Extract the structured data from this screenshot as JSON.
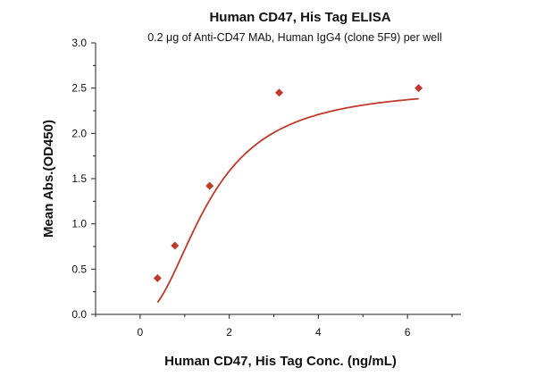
{
  "chart_data": {
    "type": "scatter",
    "title": "Human CD47, His Tag ELISA",
    "subtitle": "0.2 μg of Anti-CD47 MAb, Human IgG4 (clone 5F9) per well",
    "xlabel": "Human CD47, His Tag Conc. (ng/mL)",
    "ylabel": "Mean Abs.(OD450)",
    "xlim": [
      -1,
      7.2
    ],
    "ylim": [
      0,
      3.0
    ],
    "xticks": [
      0,
      2,
      4,
      6
    ],
    "xtick_labels": [
      "0",
      "2",
      "4",
      "6"
    ],
    "yticks": [
      0,
      0.5,
      1.0,
      1.5,
      2.0,
      2.5,
      3.0
    ],
    "ytick_labels": [
      "0.0",
      "0.5",
      "1.0",
      "1.5",
      "2.0",
      "2.5",
      "3.0"
    ],
    "grid": false,
    "legend": "none",
    "series": [
      {
        "x": [
          0.39,
          0.78,
          1.56,
          3.12,
          6.25
        ],
        "y": [
          0.4,
          0.76,
          1.42,
          2.45,
          2.5
        ],
        "marker": "diamond",
        "color": "#c0392b",
        "fit": "sigmoidal"
      }
    ]
  }
}
